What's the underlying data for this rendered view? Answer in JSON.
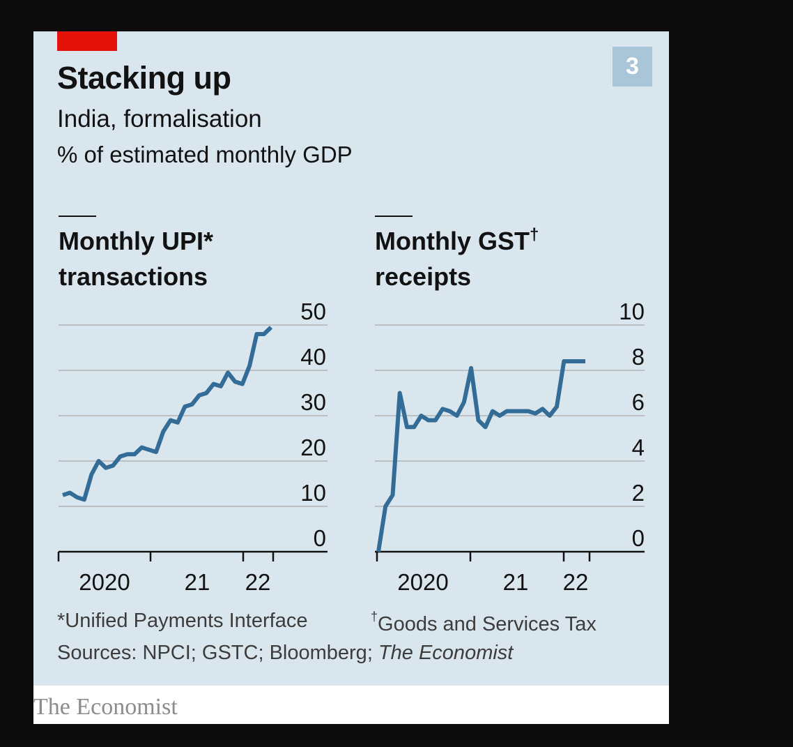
{
  "badge": "3",
  "colors": {
    "accent_red": "#e3120b",
    "line": "#336c97",
    "background": "#dae6ee",
    "grid": "#b3b3b3",
    "badge": "#a9c5d7"
  },
  "footnotes": {
    "upi": "*Unified Payments Interface",
    "gst_symbol": "†",
    "gst": "Goods and Services Tax",
    "sources_prefix": "Sources: NPCI; GSTC; Bloomberg; ",
    "sources_italic": "The Economist"
  },
  "brand": "The Economist",
  "chart_data": [
    {
      "type": "line",
      "title": "Stacking up",
      "subtitle": "India, formalisation",
      "unit": "% of estimated monthly GDP",
      "panel_title": [
        "Monthly UPI*",
        "transactions"
      ],
      "x_ticks": [
        "2020",
        "21",
        "22"
      ],
      "y_ticks": [
        0,
        10,
        20,
        30,
        40,
        50
      ],
      "ylim": [
        0,
        50
      ],
      "xlim": [
        "2019-10",
        "2022-03"
      ],
      "grid": true,
      "series": [
        {
          "x": [
            "2019-10",
            "2019-11",
            "2019-12",
            "2020-01",
            "2020-02",
            "2020-03",
            "2020-04",
            "2020-05",
            "2020-06",
            "2020-07",
            "2020-08",
            "2020-09",
            "2020-10",
            "2020-11",
            "2020-12",
            "2021-01",
            "2021-02",
            "2021-03",
            "2021-04",
            "2021-05",
            "2021-06",
            "2021-07",
            "2021-08",
            "2021-09",
            "2021-10",
            "2021-11",
            "2021-12",
            "2022-01",
            "2022-02",
            "2022-03"
          ],
          "values": [
            12.5,
            13,
            12,
            11.5,
            17,
            20,
            18.5,
            19,
            21,
            21.5,
            21.5,
            23,
            22.5,
            22,
            26.5,
            29,
            28.5,
            32,
            32.5,
            34.5,
            35,
            37,
            36.5,
            39.5,
            37.5,
            37,
            41,
            48,
            48,
            49.5
          ]
        }
      ]
    },
    {
      "type": "line",
      "panel_title": [
        "Monthly GST",
        "receipts"
      ],
      "panel_title_marker": "†",
      "x_ticks": [
        "2020",
        "21",
        "22"
      ],
      "y_ticks": [
        0,
        2,
        4,
        6,
        8,
        10
      ],
      "ylim": [
        0,
        10
      ],
      "xlim": [
        "2019-10",
        "2022-03"
      ],
      "grid": true,
      "series": [
        {
          "x": [
            "2019-10",
            "2019-11",
            "2019-12",
            "2020-01",
            "2020-02",
            "2020-03",
            "2020-04",
            "2020-05",
            "2020-06",
            "2020-07",
            "2020-08",
            "2020-09",
            "2020-10",
            "2020-11",
            "2020-12",
            "2021-01",
            "2021-02",
            "2021-03",
            "2021-04",
            "2021-05",
            "2021-06",
            "2021-07",
            "2021-08",
            "2021-09",
            "2021-10",
            "2021-11",
            "2021-12",
            "2022-01",
            "2022-02",
            "2022-03"
          ],
          "values": [
            0,
            2,
            2.5,
            7,
            5.5,
            5.5,
            6,
            5.8,
            5.8,
            6.3,
            6.2,
            6,
            6.6,
            8.1,
            5.8,
            5.5,
            6.2,
            6,
            6.2,
            6.2,
            6.2,
            6.2,
            6.1,
            6.3,
            6,
            6.4,
            8.4,
            8.4,
            8.4,
            8.4
          ]
        }
      ]
    }
  ]
}
